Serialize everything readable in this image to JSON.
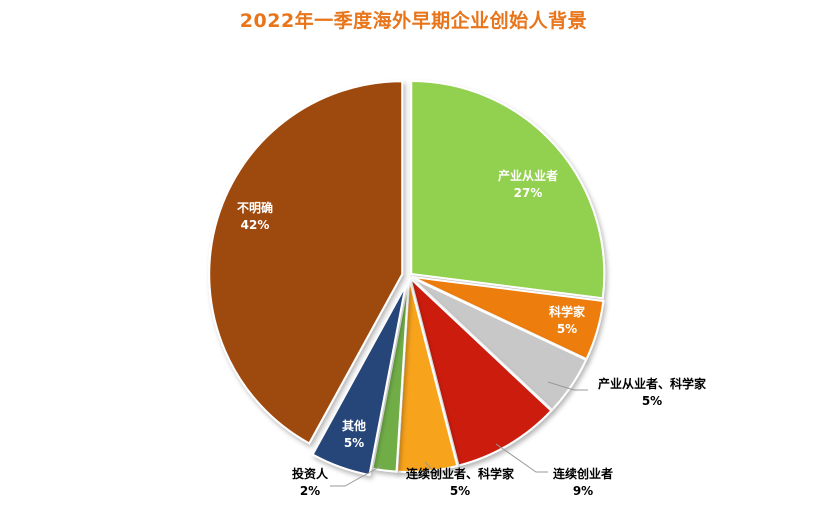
{
  "chart_data": {
    "type": "pie",
    "title": "2022年一季度海外早期企业创始人背景",
    "slices": [
      {
        "name": "产业从业者",
        "value": 27,
        "label": "27%",
        "color": "#92D050"
      },
      {
        "name": "科学家",
        "value": 5,
        "label": "5%",
        "color": "#ED7D0A"
      },
      {
        "name": "产业从业者、科学家",
        "value": 5,
        "label": "5%",
        "color": "#C8C8C8"
      },
      {
        "name": "连续创业者",
        "value": 9,
        "label": "9%",
        "color": "#CC1D0E"
      },
      {
        "name": "连续创业者、科学家",
        "value": 5,
        "label": "5%",
        "color": "#F8A31E"
      },
      {
        "name": "投资人",
        "value": 2,
        "label": "2%",
        "color": "#70AD47"
      },
      {
        "name": "其他",
        "value": 5,
        "label": "5%",
        "color": "#264478"
      },
      {
        "name": "不明确",
        "value": 42,
        "label": "42%",
        "color": "#9E480E"
      }
    ]
  }
}
